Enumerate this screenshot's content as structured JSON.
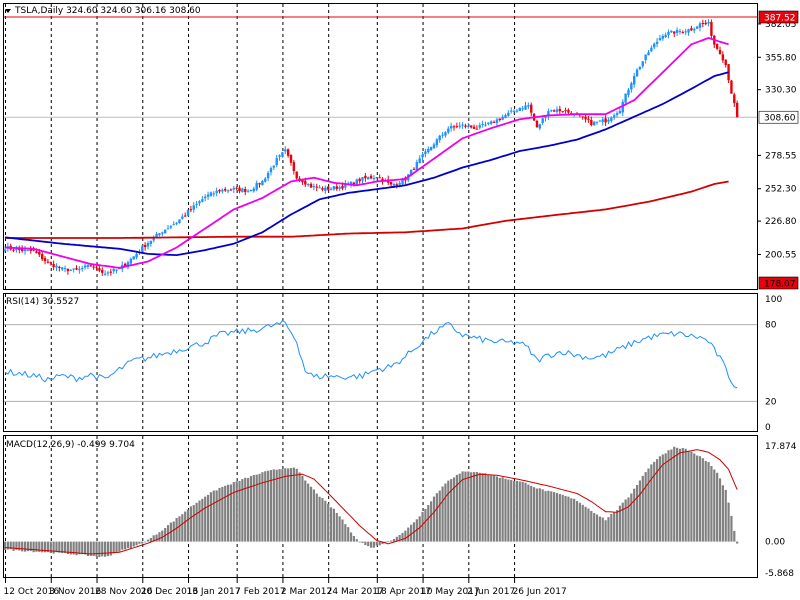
{
  "chart_data": {
    "type": "candlestick",
    "colors": {
      "bull_candle": "#1e90ff",
      "bear_candle": "#e8000b",
      "ma_fast": "#ee00ee",
      "ma_mid": "#0000cc",
      "ma_slow": "#d40000",
      "rsi_line": "#1e90ff",
      "macd_hist": "#808080",
      "macd_signal": "#cc0000",
      "grid": "#000000",
      "price_label_bg": "#e8000b",
      "current_label_bg": "#ffffff"
    },
    "main": {
      "header": "TSLA,Daily  324.60 324.60 306.16 308.60",
      "ylim": [
        178.07,
        387.52
      ],
      "ticks": [
        "382.05",
        "355.80",
        "330.30",
        "278.55",
        "252.30",
        "226.80",
        "200.55"
      ],
      "tick_values": [
        382.05,
        355.8,
        330.3,
        278.55,
        252.3,
        226.8,
        200.55
      ],
      "max_label": "387.52",
      "max_value": 387.52,
      "min_label": "178.07",
      "min_value": 178.07,
      "current_label": "308.60",
      "current_value": 308.6,
      "close_anchors": [
        [
          0,
          206
        ],
        [
          5,
          204
        ],
        [
          10,
          203
        ],
        [
          15,
          194
        ],
        [
          20,
          189
        ],
        [
          25,
          188
        ],
        [
          30,
          192
        ],
        [
          35,
          186
        ],
        [
          40,
          189
        ],
        [
          45,
          199
        ],
        [
          50,
          210
        ],
        [
          55,
          219
        ],
        [
          60,
          226
        ],
        [
          65,
          236
        ],
        [
          70,
          246
        ],
        [
          75,
          251
        ],
        [
          80,
          252
        ],
        [
          85,
          251
        ],
        [
          90,
          258
        ],
        [
          95,
          275
        ],
        [
          98,
          282
        ],
        [
          102,
          262
        ],
        [
          107,
          254
        ],
        [
          112,
          252
        ],
        [
          118,
          254
        ],
        [
          125,
          260
        ],
        [
          130,
          262
        ],
        [
          135,
          255
        ],
        [
          140,
          260
        ],
        [
          145,
          275
        ],
        [
          150,
          288
        ],
        [
          155,
          300
        ],
        [
          160,
          302
        ],
        [
          165,
          300
        ],
        [
          170,
          304
        ],
        [
          175,
          310
        ],
        [
          180,
          316
        ],
        [
          183,
          318
        ],
        [
          186,
          300
        ],
        [
          190,
          314
        ],
        [
          195,
          314
        ],
        [
          200,
          310
        ],
        [
          205,
          304
        ],
        [
          210,
          306
        ],
        [
          215,
          315
        ],
        [
          220,
          342
        ],
        [
          225,
          360
        ],
        [
          230,
          374
        ],
        [
          235,
          376
        ],
        [
          240,
          378
        ],
        [
          243,
          382
        ],
        [
          246,
          382
        ],
        [
          248,
          366
        ],
        [
          250,
          360
        ],
        [
          252,
          350
        ],
        [
          254,
          328
        ],
        [
          256,
          308.6
        ]
      ],
      "ma_fast": [
        [
          0,
          206
        ],
        [
          10,
          205
        ],
        [
          20,
          199
        ],
        [
          30,
          193
        ],
        [
          40,
          190
        ],
        [
          50,
          195
        ],
        [
          60,
          206
        ],
        [
          70,
          221
        ],
        [
          80,
          236
        ],
        [
          90,
          245
        ],
        [
          100,
          258
        ],
        [
          108,
          261
        ],
        [
          115,
          257
        ],
        [
          123,
          255
        ],
        [
          130,
          258
        ],
        [
          140,
          260
        ],
        [
          150,
          276
        ],
        [
          160,
          292
        ],
        [
          170,
          300
        ],
        [
          180,
          307
        ],
        [
          190,
          310
        ],
        [
          200,
          311
        ],
        [
          210,
          311
        ],
        [
          220,
          322
        ],
        [
          230,
          344
        ],
        [
          240,
          366
        ],
        [
          246,
          371
        ],
        [
          250,
          368
        ],
        [
          253,
          366
        ]
      ],
      "ma_mid": [
        [
          0,
          214
        ],
        [
          20,
          209
        ],
        [
          40,
          205
        ],
        [
          50,
          201
        ],
        [
          60,
          200
        ],
        [
          70,
          204
        ],
        [
          80,
          209
        ],
        [
          90,
          218
        ],
        [
          100,
          232
        ],
        [
          110,
          244
        ],
        [
          120,
          249
        ],
        [
          130,
          252
        ],
        [
          140,
          255
        ],
        [
          150,
          261
        ],
        [
          160,
          269
        ],
        [
          170,
          275
        ],
        [
          180,
          282
        ],
        [
          190,
          286
        ],
        [
          200,
          291
        ],
        [
          210,
          299
        ],
        [
          220,
          309
        ],
        [
          230,
          319
        ],
        [
          240,
          331
        ],
        [
          248,
          341
        ],
        [
          253,
          344
        ]
      ],
      "ma_slow": [
        [
          0,
          213.5
        ],
        [
          40,
          213.5
        ],
        [
          80,
          214.5
        ],
        [
          100,
          214.5
        ],
        [
          120,
          217
        ],
        [
          140,
          218
        ],
        [
          160,
          221
        ],
        [
          175,
          227
        ],
        [
          190,
          231
        ],
        [
          210,
          236
        ],
        [
          225,
          242
        ],
        [
          240,
          250
        ],
        [
          248,
          256
        ],
        [
          253,
          258
        ]
      ]
    },
    "rsi": {
      "label": "RSI(14) 30.5527",
      "ylim": [
        0,
        100
      ],
      "levels": [
        20,
        80
      ],
      "tick_labels": [
        "100",
        "80",
        "20",
        "0"
      ],
      "tick_values": [
        100,
        80,
        20,
        0
      ],
      "anchors": [
        [
          0,
          43
        ],
        [
          5,
          42
        ],
        [
          10,
          40
        ],
        [
          15,
          37
        ],
        [
          20,
          40
        ],
        [
          25,
          38
        ],
        [
          30,
          41
        ],
        [
          35,
          37
        ],
        [
          40,
          45
        ],
        [
          45,
          52
        ],
        [
          50,
          54
        ],
        [
          55,
          57
        ],
        [
          60,
          60
        ],
        [
          65,
          63
        ],
        [
          70,
          66
        ],
        [
          75,
          72
        ],
        [
          80,
          74
        ],
        [
          85,
          75
        ],
        [
          90,
          77
        ],
        [
          95,
          80
        ],
        [
          98,
          81
        ],
        [
          102,
          67
        ],
        [
          105,
          44
        ],
        [
          108,
          39
        ],
        [
          112,
          40
        ],
        [
          118,
          39
        ],
        [
          125,
          40
        ],
        [
          130,
          45
        ],
        [
          135,
          47
        ],
        [
          140,
          55
        ],
        [
          145,
          65
        ],
        [
          150,
          74
        ],
        [
          155,
          80
        ],
        [
          160,
          72
        ],
        [
          165,
          69
        ],
        [
          170,
          67
        ],
        [
          175,
          66
        ],
        [
          180,
          66
        ],
        [
          183,
          61
        ],
        [
          186,
          52
        ],
        [
          190,
          56
        ],
        [
          195,
          59
        ],
        [
          200,
          56
        ],
        [
          205,
          54
        ],
        [
          210,
          56
        ],
        [
          215,
          61
        ],
        [
          220,
          66
        ],
        [
          225,
          70
        ],
        [
          230,
          72
        ],
        [
          235,
          73
        ],
        [
          240,
          71
        ],
        [
          243,
          70
        ],
        [
          246,
          67
        ],
        [
          248,
          60
        ],
        [
          250,
          54
        ],
        [
          252,
          45
        ],
        [
          254,
          36
        ],
        [
          256,
          30.55
        ]
      ]
    },
    "macd": {
      "label": "MACD(12,26,9) -0.499 9.704",
      "ylim": [
        -5.868,
        17.874
      ],
      "zero_label": "0.00",
      "top_label": "17.874",
      "bottom_label": "-5.868",
      "hist_anchors": [
        [
          0,
          -1.5
        ],
        [
          12,
          -1.9
        ],
        [
          25,
          -2.4
        ],
        [
          35,
          -2.9
        ],
        [
          40,
          -1.8
        ],
        [
          45,
          -1.0
        ],
        [
          50,
          0.3
        ],
        [
          55,
          2.2
        ],
        [
          60,
          4.3
        ],
        [
          65,
          6.5
        ],
        [
          70,
          8.5
        ],
        [
          75,
          10.0
        ],
        [
          80,
          11.0
        ],
        [
          85,
          12.0
        ],
        [
          90,
          12.9
        ],
        [
          95,
          13.5
        ],
        [
          100,
          13.9
        ],
        [
          102,
          13.5
        ],
        [
          106,
          10.8
        ],
        [
          110,
          8.5
        ],
        [
          115,
          6.0
        ],
        [
          118,
          4.1
        ],
        [
          121,
          1.8
        ],
        [
          124,
          0.0
        ],
        [
          128,
          -1.2
        ],
        [
          131,
          -0.6
        ],
        [
          135,
          0.3
        ],
        [
          140,
          2.0
        ],
        [
          145,
          4.8
        ],
        [
          150,
          8.4
        ],
        [
          155,
          11.5
        ],
        [
          160,
          13.0
        ],
        [
          165,
          13.1
        ],
        [
          170,
          12.4
        ],
        [
          175,
          11.8
        ],
        [
          180,
          11.2
        ],
        [
          183,
          10.8
        ],
        [
          186,
          10.0
        ],
        [
          190,
          9.4
        ],
        [
          195,
          8.7
        ],
        [
          200,
          7.7
        ],
        [
          205,
          5.8
        ],
        [
          210,
          4.1
        ],
        [
          214,
          6.0
        ],
        [
          218,
          8.3
        ],
        [
          222,
          11.5
        ],
        [
          226,
          14.5
        ],
        [
          230,
          16.3
        ],
        [
          234,
          17.7
        ],
        [
          238,
          17.3
        ],
        [
          242,
          16.2
        ],
        [
          246,
          14.8
        ],
        [
          249,
          12.8
        ],
        [
          252,
          9.6
        ],
        [
          254,
          4.7
        ],
        [
          256,
          -0.5
        ]
      ],
      "signal_anchors": [
        [
          0,
          -1.1
        ],
        [
          15,
          -1.7
        ],
        [
          30,
          -2.3
        ],
        [
          40,
          -2.0
        ],
        [
          50,
          -0.3
        ],
        [
          55,
          0.8
        ],
        [
          60,
          2.5
        ],
        [
          65,
          4.5
        ],
        [
          70,
          6.3
        ],
        [
          80,
          9.2
        ],
        [
          90,
          11.0
        ],
        [
          98,
          12.2
        ],
        [
          104,
          12.6
        ],
        [
          108,
          11.7
        ],
        [
          112,
          9.6
        ],
        [
          118,
          6.3
        ],
        [
          124,
          3.0
        ],
        [
          130,
          0.2
        ],
        [
          134,
          -0.4
        ],
        [
          140,
          0.6
        ],
        [
          145,
          2.6
        ],
        [
          150,
          5.5
        ],
        [
          155,
          9.0
        ],
        [
          160,
          11.6
        ],
        [
          166,
          12.6
        ],
        [
          172,
          12.4
        ],
        [
          180,
          11.6
        ],
        [
          190,
          10.4
        ],
        [
          200,
          9.0
        ],
        [
          205,
          7.5
        ],
        [
          210,
          5.6
        ],
        [
          214,
          5.5
        ],
        [
          218,
          6.5
        ],
        [
          222,
          8.8
        ],
        [
          226,
          11.7
        ],
        [
          230,
          14.4
        ],
        [
          236,
          16.6
        ],
        [
          242,
          17.2
        ],
        [
          246,
          16.7
        ],
        [
          250,
          15.3
        ],
        [
          253,
          13.5
        ],
        [
          256,
          9.7
        ]
      ]
    },
    "x_labels": [
      {
        "text": "12 Oct 2016",
        "i": 0
      },
      {
        "text": "3 Nov 2016",
        "i": 16
      },
      {
        "text": "28 Nov 2016",
        "i": 32
      },
      {
        "text": "20 Dec 2016",
        "i": 48
      },
      {
        "text": "13 Jan 2017",
        "i": 64
      },
      {
        "text": "7 Feb 2017",
        "i": 81
      },
      {
        "text": "2 Mar 2017",
        "i": 97
      },
      {
        "text": "24 Mar 2017",
        "i": 113
      },
      {
        "text": "18 Apr 2017",
        "i": 130
      },
      {
        "text": "10 May 2017",
        "i": 146
      },
      {
        "text": "2 Jun 2017",
        "i": 162
      },
      {
        "text": "26 Jun 2017",
        "i": 178
      }
    ]
  }
}
